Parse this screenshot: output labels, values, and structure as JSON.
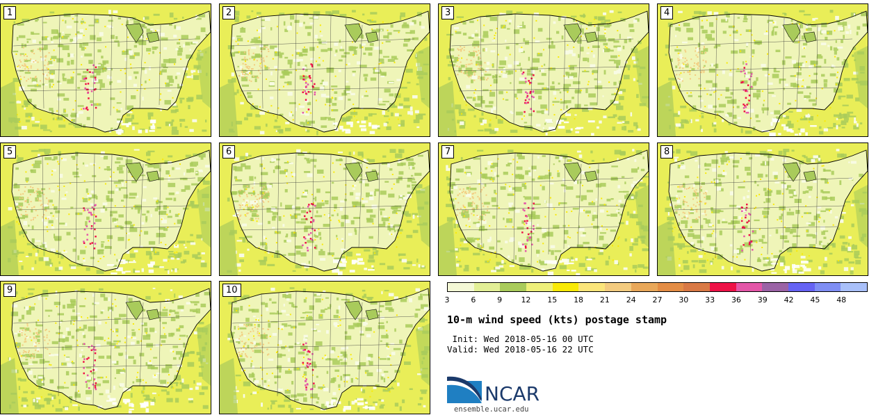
{
  "panels": [
    {
      "label": "1"
    },
    {
      "label": "2"
    },
    {
      "label": "3"
    },
    {
      "label": "4"
    },
    {
      "label": "5"
    },
    {
      "label": "6"
    },
    {
      "label": "7"
    },
    {
      "label": "8"
    },
    {
      "label": "9"
    },
    {
      "label": "10"
    }
  ],
  "colorbar": {
    "colors": [
      "#f4f8d6",
      "#e2ef96",
      "#a9cb5b",
      "#eef07a",
      "#f9ea06",
      "#fbe57a",
      "#f3cb7f",
      "#e9a85a",
      "#e48d45",
      "#d97945",
      "#ee1247",
      "#e456a8",
      "#9b63a6",
      "#6663f4",
      "#7f8ef4",
      "#a9c0f9"
    ],
    "ticks": [
      "3",
      "6",
      "9",
      "12",
      "15",
      "18",
      "21",
      "24",
      "27",
      "30",
      "33",
      "36",
      "39",
      "42",
      "45",
      "48"
    ]
  },
  "title": "10-m wind speed (kts) postage stamp",
  "init_line": " Init: Wed 2018-05-16 00 UTC",
  "valid_line": "Valid: Wed 2018-05-16 22 UTC",
  "logo_text": "NCAR",
  "logo_icon": "ncar-swoosh-logo",
  "site": "ensemble.ucar.edu"
}
